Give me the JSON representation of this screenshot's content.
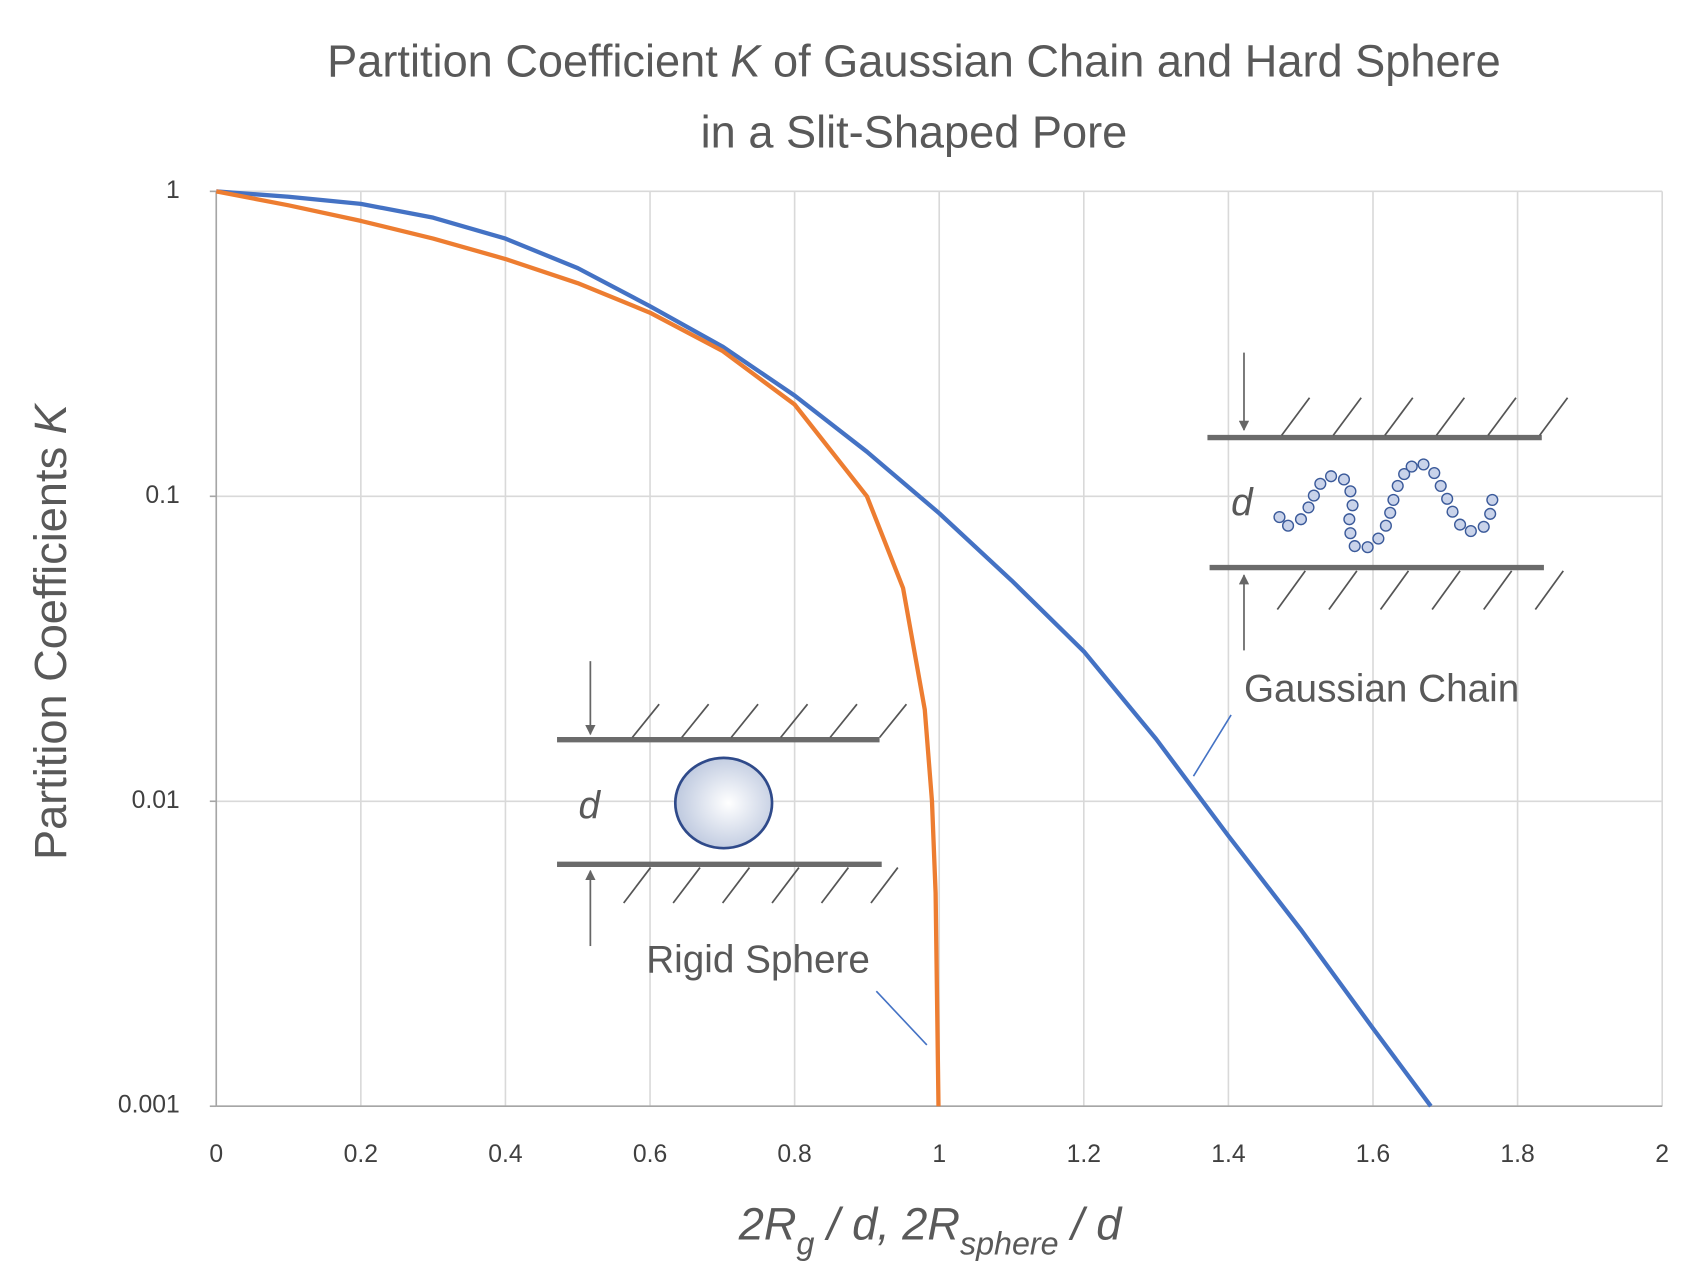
{
  "chart_data": {
    "type": "line",
    "title": [
      [
        {
          "text": "Partition Coefficient "
        },
        {
          "text": "K",
          "italic": true
        },
        {
          "text": " of Gaussian Chain and Hard Sphere"
        }
      ],
      [
        {
          "text": "in a Slit-Shaped Pore"
        }
      ]
    ],
    "x_label": [
      {
        "text": "2R"
      },
      {
        "text": "g",
        "sub": true
      },
      {
        "text": " / d,   2R"
      },
      {
        "text": "sphere",
        "sub": true
      },
      {
        "text": " / d"
      }
    ],
    "y_label": [
      {
        "text": "Partition Coefficients "
      },
      {
        "text": "K",
        "italic": true
      }
    ],
    "xlim": [
      0,
      2
    ],
    "xticks": [
      0,
      0.2,
      0.4,
      0.6,
      0.8,
      1,
      1.2,
      1.4,
      1.6,
      1.8,
      2
    ],
    "ylim": [
      0.001,
      1
    ],
    "yticks": [
      1,
      0.1,
      0.01,
      0.001
    ],
    "log_y": true,
    "grid": true,
    "series": [
      {
        "name": "Gaussian Chain",
        "color": "#4472c4",
        "x": [
          0,
          0.1,
          0.2,
          0.3,
          0.4,
          0.5,
          0.6,
          0.7,
          0.8,
          0.9,
          1.0,
          1.1,
          1.2,
          1.3,
          1.4,
          1.5,
          1.6,
          1.68
        ],
        "values": [
          1,
          0.96,
          0.91,
          0.82,
          0.7,
          0.56,
          0.42,
          0.31,
          0.214,
          0.14,
          0.088,
          0.053,
          0.031,
          0.016,
          0.0077,
          0.0038,
          0.0018,
          0.001
        ]
      },
      {
        "name": "Rigid Sphere",
        "color": "#ed7d31",
        "x": [
          0,
          0.1,
          0.2,
          0.3,
          0.4,
          0.5,
          0.6,
          0.7,
          0.8,
          0.9,
          0.95,
          0.98,
          0.99,
          0.995,
          0.999
        ],
        "values": [
          1,
          0.9,
          0.8,
          0.7,
          0.6,
          0.5,
          0.4,
          0.3,
          0.2,
          0.1,
          0.05,
          0.02,
          0.01,
          0.005,
          0.001
        ]
      }
    ],
    "annotations": [
      "d",
      "d"
    ]
  }
}
